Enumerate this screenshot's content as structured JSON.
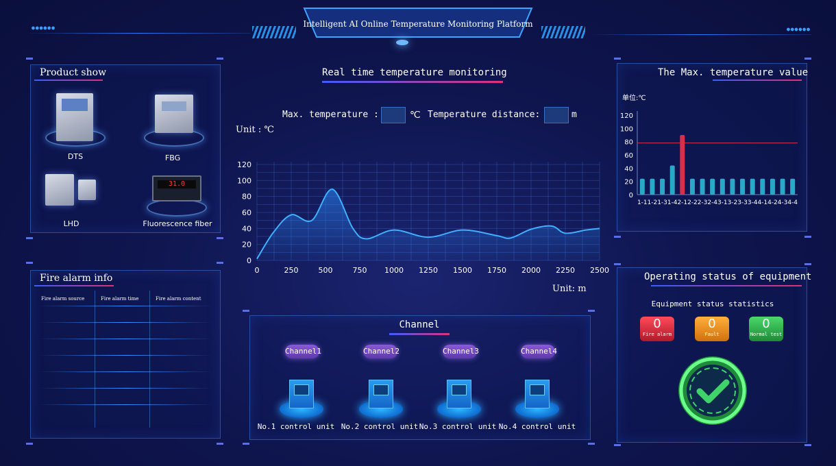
{
  "header": {
    "title": "Intelligent AI Online Temperature Monitoring Platform"
  },
  "products": {
    "title": "Product show",
    "items": [
      {
        "label": "DTS"
      },
      {
        "label": "FBG"
      },
      {
        "label": "LHD"
      },
      {
        "label": "Fluorescence fiber"
      }
    ],
    "display_reading": "31.0"
  },
  "fire_alarm": {
    "title": "Fire alarm info",
    "columns": [
      "Fire alarm source",
      "Fire alarm time",
      "Fire alarm content"
    ],
    "rows": []
  },
  "monitoring": {
    "title": "Real time temperature monitoring",
    "max_temp_label": "Max. temperature :",
    "max_temp_value": "",
    "temp_unit": "℃",
    "distance_label": "Temperature distance:",
    "distance_value": "",
    "distance_unit": "m",
    "y_unit": "Unit : ℃",
    "x_unit": "Unit: m"
  },
  "max_temp_panel": {
    "title": "The Max. temperature value",
    "unit": "单位:℃"
  },
  "channel": {
    "title": "Channel",
    "channels": [
      "Channel1",
      "Channel2",
      "Channel3",
      "Channel4"
    ],
    "units": [
      "No.1 control unit",
      "No.2 control unit",
      "No.3 control unit",
      "No.4 control unit"
    ]
  },
  "status": {
    "title": "Operating status of equipment",
    "subtitle": "Equipment status statistics",
    "items": [
      {
        "value": "0",
        "label": "Fire alarm",
        "color": "#d42a3a"
      },
      {
        "value": "0",
        "label": "Fault",
        "color": "#f08a1c"
      },
      {
        "value": "0",
        "label": "Normal test",
        "color": "#2aa84a"
      }
    ],
    "ok_color": "#3ed46a"
  },
  "chart_data": [
    {
      "type": "area",
      "xlim": [
        0,
        2500
      ],
      "ylim": [
        0,
        120
      ],
      "x_ticks": [
        "0",
        "250",
        "500",
        "750",
        "1000",
        "1250",
        "1500",
        "1750",
        "2000",
        "2250",
        "2500"
      ],
      "y_ticks": [
        "0",
        "20",
        "40",
        "60",
        "80",
        "100",
        "120"
      ],
      "xlabel": "Unit: m",
      "ylabel": "Unit : ℃",
      "x": [
        0,
        120,
        250,
        400,
        550,
        700,
        800,
        1000,
        1250,
        1500,
        1750,
        1850,
        2000,
        2150,
        2250,
        2400,
        2500
      ],
      "y": [
        2,
        35,
        57,
        50,
        89,
        40,
        27,
        38,
        29,
        38,
        31,
        28,
        39,
        43,
        34,
        38,
        40
      ]
    },
    {
      "type": "bar",
      "ylim": [
        0,
        120
      ],
      "y_ticks": [
        "0",
        "20",
        "40",
        "60",
        "80",
        "100",
        "120"
      ],
      "ylabel": "单位:℃",
      "threshold": 78,
      "categories": [
        "1-1",
        "1-2",
        "1-3",
        "1-4",
        "2-1",
        "2-2",
        "2-3",
        "2-4",
        "3-1",
        "3-2",
        "3-3",
        "3-4",
        "4-1",
        "4-2",
        "4-3",
        "4-4"
      ],
      "values": [
        24,
        24,
        24,
        44,
        90,
        24,
        24,
        24,
        24,
        24,
        24,
        24,
        24,
        24,
        24,
        24
      ],
      "highlight_index": 4
    }
  ]
}
